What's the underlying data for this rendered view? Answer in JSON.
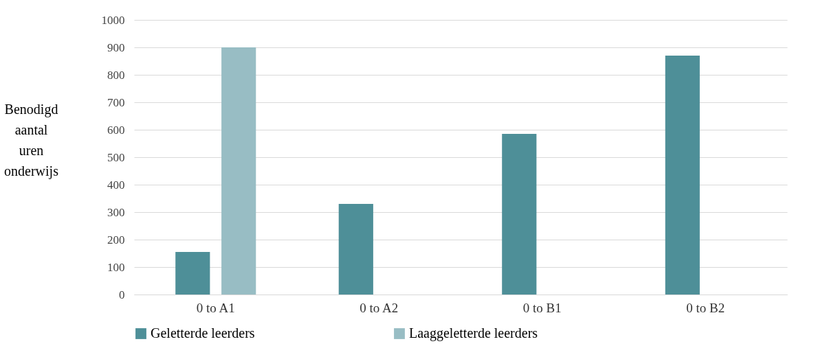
{
  "chart_data": {
    "type": "bar",
    "ylabel": "Benodigd aantal uren onderwijs",
    "categories": [
      "0 to A1",
      "0 to A2",
      "0 to B1",
      "0 to B2"
    ],
    "series": [
      {
        "name": "Geletterde leerders",
        "color": "#4e8f98",
        "values": [
          155,
          330,
          585,
          870
        ]
      },
      {
        "name": "Laaggeletterde leerders",
        "color": "#98bdc4",
        "values": [
          900,
          null,
          null,
          null
        ]
      }
    ],
    "ylim": [
      0,
      1000
    ],
    "yticks": [
      0,
      100,
      200,
      300,
      400,
      500,
      600,
      700,
      800,
      900,
      1000
    ],
    "grid": "y",
    "legend": "bottom"
  }
}
